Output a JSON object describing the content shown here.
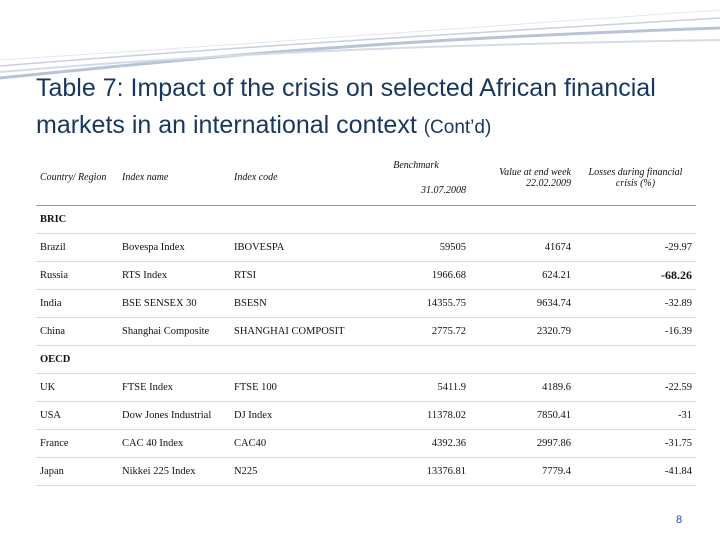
{
  "header": {
    "title": "Table 7: Impact of the crisis on selected African financial markets in an international context",
    "note": "(Cont’d)"
  },
  "table": {
    "columns": [
      "Country/ Region",
      "Index name",
      "Index code",
      {
        "label": "Benchmark",
        "date": "31.07.2008"
      },
      "Value at end week 22.02.2009",
      "Losses during financial crisis (%)"
    ],
    "groups": [
      {
        "name": "BRIC",
        "rows": [
          [
            "Brazil",
            "Bovespa Index",
            "IBOVESPA",
            "59505",
            "41674",
            "-29.97"
          ],
          [
            "Russia",
            "RTS Index",
            "RTSI",
            "1966.68",
            "624.21",
            "-68.26"
          ],
          [
            "India",
            "BSE SENSEX 30",
            "BSESN",
            "14355.75",
            "9634.74",
            "-32.89"
          ],
          [
            "China",
            "Shanghai Composite",
            "SHANGHAI COMPOSIT",
            "2775.72",
            "2320.79",
            "-16.39"
          ]
        ]
      },
      {
        "name": "OECD",
        "rows": [
          [
            "UK",
            "FTSE Index",
            "FTSE 100",
            "5411.9",
            "4189.6",
            "-22.59"
          ],
          [
            "USA",
            "Dow Jones Industrial",
            "DJ Index",
            "11378.02",
            "7850.41",
            "-31"
          ],
          [
            "France",
            "CAC 40 Index",
            "CAC40",
            "4392.36",
            "2997.86",
            "-31.75"
          ],
          [
            "Japan",
            "Nikkei 225 Index",
            "N225",
            "13376.81",
            "7779.4",
            "-41.84"
          ]
        ]
      }
    ]
  },
  "page_number": "8"
}
